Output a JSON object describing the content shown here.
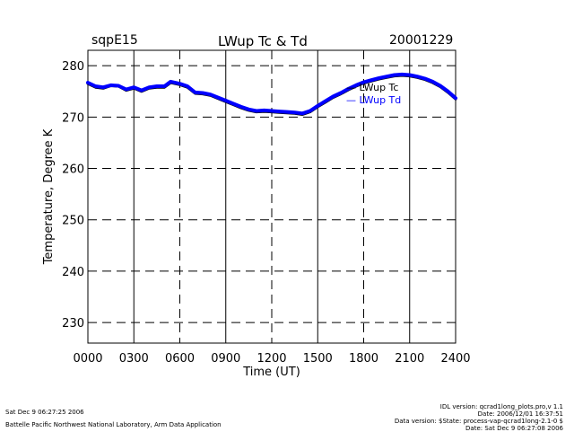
{
  "header": {
    "site": "sqpE15",
    "title": "LWup Tc & Td",
    "date": "20001229"
  },
  "footer": {
    "left_line1": "Sat Dec  9 06:27:25 2006",
    "left_line2": "Battelle Pacific Northwest National Laboratory, Arm Data Application",
    "right_line1": "IDL version: qcrad1long_plots.pro,v 1.1",
    "right_line2": "Date: 2006/12/01 16:37:51",
    "right_line3": "Data version: $State: process-vap-qcrad1long-2.1-0 $",
    "right_line4": "Date: Sat Dec  9 06:27:08 2006"
  },
  "colors": {
    "series_tc": "#000000",
    "series_td": "#0000ff",
    "axis": "#000000",
    "grid": "#000000"
  },
  "chart_data": {
    "type": "line",
    "xlabel": "Time (UT)",
    "ylabel": "Temperature, Degree K",
    "xlim": [
      0,
      2400
    ],
    "ylim": [
      226,
      283
    ],
    "xticks": [
      0,
      300,
      600,
      900,
      1200,
      1500,
      1800,
      2100,
      2400
    ],
    "xtick_labels": [
      "0000",
      "0300",
      "0600",
      "0900",
      "1200",
      "1500",
      "1800",
      "2100",
      "2400"
    ],
    "yticks": [
      230,
      240,
      250,
      260,
      270,
      280
    ],
    "ytick_labels": [
      "230",
      "240",
      "250",
      "260",
      "270",
      "280"
    ],
    "grid": true,
    "legend_position": "top-right",
    "series": [
      {
        "name": "LWup Tc",
        "x": [
          0,
          50,
          100,
          150,
          200,
          250,
          300,
          350,
          400,
          450,
          500,
          540,
          600,
          650,
          700,
          750,
          800,
          850,
          900,
          950,
          1000,
          1050,
          1100,
          1150,
          1200,
          1250,
          1300,
          1350,
          1400,
          1450,
          1500,
          1550,
          1600,
          1650,
          1700,
          1750,
          1800,
          1850,
          1900,
          1950,
          2000,
          2050,
          2100,
          2150,
          2200,
          2250,
          2300,
          2350,
          2400
        ],
        "values": [
          276.5,
          275.8,
          275.6,
          276.1,
          276.0,
          275.2,
          275.6,
          275.0,
          275.6,
          275.8,
          275.8,
          276.7,
          276.3,
          275.8,
          274.6,
          274.5,
          274.2,
          273.6,
          273.0,
          272.4,
          271.8,
          271.3,
          271.0,
          271.1,
          271.0,
          270.9,
          270.8,
          270.7,
          270.5,
          271.0,
          272.0,
          272.9,
          273.8,
          274.5,
          275.3,
          276.0,
          276.6,
          277.0,
          277.4,
          277.7,
          278.0,
          278.1,
          278.0,
          277.7,
          277.3,
          276.7,
          275.9,
          274.8,
          273.5
        ]
      },
      {
        "name": "LWup Td",
        "x": [
          0,
          50,
          100,
          150,
          200,
          250,
          300,
          350,
          400,
          450,
          500,
          540,
          600,
          650,
          700,
          750,
          800,
          850,
          900,
          950,
          1000,
          1050,
          1100,
          1150,
          1200,
          1250,
          1300,
          1350,
          1400,
          1450,
          1500,
          1550,
          1600,
          1650,
          1700,
          1750,
          1800,
          1850,
          1900,
          1950,
          2000,
          2050,
          2100,
          2150,
          2200,
          2250,
          2300,
          2350,
          2400
        ],
        "values": [
          276.7,
          276.0,
          275.8,
          276.2,
          276.1,
          275.4,
          275.8,
          275.2,
          275.8,
          276.0,
          276.0,
          276.9,
          276.5,
          276.0,
          274.8,
          274.7,
          274.4,
          273.8,
          273.2,
          272.6,
          272.0,
          271.5,
          271.2,
          271.3,
          271.2,
          271.1,
          271.0,
          270.9,
          270.7,
          271.2,
          272.2,
          273.1,
          274.0,
          274.7,
          275.5,
          276.2,
          276.8,
          277.2,
          277.6,
          277.9,
          278.2,
          278.3,
          278.2,
          277.9,
          277.5,
          276.9,
          276.1,
          275.0,
          273.7
        ]
      }
    ]
  }
}
